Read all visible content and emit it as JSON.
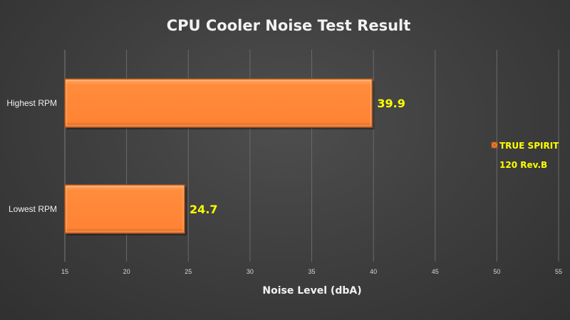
{
  "chart_data": {
    "type": "bar",
    "orientation": "horizontal",
    "title": "CPU Cooler Noise Test Result",
    "xlabel": "Noise Level (dbA)",
    "ylabel": "",
    "categories": [
      "Highest RPM",
      "Lowest RPM"
    ],
    "series": [
      {
        "name": "TRUE SPIRIT 120 Rev.B",
        "values": [
          39.9,
          24.7
        ]
      }
    ],
    "data_labels": [
      "39.9",
      "24.7"
    ],
    "xlim": [
      15,
      55
    ],
    "xticks": [
      15,
      20,
      25,
      30,
      35,
      40,
      45,
      50,
      55
    ],
    "xtick_labels": [
      "15",
      "20",
      "25",
      "30",
      "35",
      "40",
      "45",
      "50",
      "55"
    ],
    "grid": true,
    "legend": {
      "position": "right",
      "lines": [
        "TRUE SPIRIT",
        "120 Rev.B"
      ]
    },
    "colors": {
      "bar": "#ff8a3a",
      "bar_edge": "#a8541c",
      "data_label": "#ffff00",
      "legend_text": "#ffff00",
      "text": "#f2f2f2",
      "grid": "#6a6a6a"
    }
  }
}
